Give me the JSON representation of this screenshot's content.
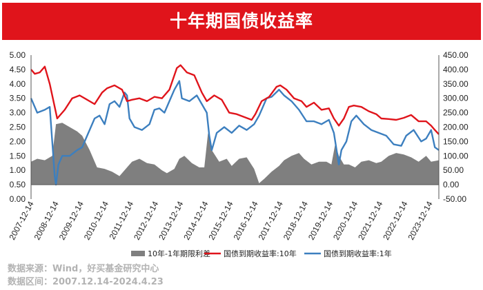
{
  "title": "十年期国债收益率",
  "colors": {
    "header": "#e0141b",
    "spread": "#7f7f7f",
    "y10": "#e0141b",
    "y1": "#3c7fbf"
  },
  "chart_data": {
    "type": "line",
    "x_tick_labels": [
      "2007-12-14",
      "2008-12-14",
      "2009-12-14",
      "2010-12-14",
      "2011-12-14",
      "2012-12-14",
      "2013-12-14",
      "2014-12-14",
      "2015-12-14",
      "2016-12-14",
      "2017-12-14",
      "2018-12-14",
      "2019-12-14",
      "2020-12-14",
      "2021-12-14",
      "2022-12-14",
      "2023-12-14"
    ],
    "x_range": [
      2007.95,
      2024.31
    ],
    "left_axis": {
      "ylim": [
        0,
        5
      ],
      "ticks": [
        "0.00",
        "0.50",
        "1.00",
        "1.50",
        "2.00",
        "2.50",
        "3.00",
        "3.50",
        "4.00",
        "4.50",
        "5.00"
      ]
    },
    "right_axis": {
      "ylim": [
        -50,
        450
      ],
      "ticks": [
        "-50.00",
        "0.00",
        "50.00",
        "100.00",
        "150.00",
        "200.00",
        "250.00",
        "300.00",
        "350.00",
        "400.00",
        "450.00"
      ]
    },
    "series": [
      {
        "name": "10年-1年期限利差",
        "type": "area",
        "axis": "right",
        "x": [
          2007.95,
          2008.2,
          2008.5,
          2008.8,
          2008.95,
          2009.2,
          2009.5,
          2009.8,
          2010.0,
          2010.3,
          2010.6,
          2010.9,
          2011.2,
          2011.5,
          2011.8,
          2012.0,
          2012.3,
          2012.6,
          2012.9,
          2013.2,
          2013.4,
          2013.7,
          2013.9,
          2014.1,
          2014.4,
          2014.7,
          2014.9,
          2015.05,
          2015.2,
          2015.5,
          2015.8,
          2016.0,
          2016.3,
          2016.6,
          2016.9,
          2017.1,
          2017.3,
          2017.6,
          2017.9,
          2018.1,
          2018.4,
          2018.7,
          2018.9,
          2019.2,
          2019.5,
          2019.8,
          2020.0,
          2020.15,
          2020.3,
          2020.5,
          2020.7,
          2020.95,
          2021.2,
          2021.5,
          2021.8,
          2022.0,
          2022.3,
          2022.6,
          2022.9,
          2023.2,
          2023.5,
          2023.8,
          2024.0,
          2024.31
        ],
        "values": [
          80,
          90,
          85,
          100,
          210,
          215,
          200,
          185,
          170,
          120,
          60,
          55,
          45,
          30,
          60,
          80,
          90,
          75,
          70,
          50,
          40,
          55,
          90,
          100,
          75,
          60,
          60,
          180,
          120,
          80,
          90,
          65,
          90,
          95,
          55,
          5,
          20,
          45,
          65,
          85,
          100,
          110,
          90,
          70,
          80,
          80,
          70,
          140,
          100,
          70,
          70,
          60,
          80,
          85,
          75,
          80,
          100,
          110,
          105,
          95,
          80,
          100,
          80,
          85
        ]
      },
      {
        "name": "国债到期收益率:10年",
        "type": "line",
        "axis": "left",
        "x": [
          2007.95,
          2008.1,
          2008.3,
          2008.5,
          2008.7,
          2008.9,
          2009.0,
          2009.3,
          2009.6,
          2009.9,
          2010.2,
          2010.5,
          2010.8,
          2011.0,
          2011.3,
          2011.6,
          2011.8,
          2012.0,
          2012.3,
          2012.6,
          2012.9,
          2013.2,
          2013.5,
          2013.8,
          2013.95,
          2014.2,
          2014.5,
          2014.8,
          2015.0,
          2015.3,
          2015.6,
          2015.9,
          2016.2,
          2016.5,
          2016.8,
          2016.95,
          2017.2,
          2017.5,
          2017.8,
          2017.95,
          2018.2,
          2018.5,
          2018.8,
          2019.0,
          2019.3,
          2019.6,
          2019.9,
          2020.1,
          2020.3,
          2020.5,
          2020.7,
          2020.9,
          2021.2,
          2021.5,
          2021.8,
          2022.0,
          2022.3,
          2022.6,
          2022.9,
          2023.2,
          2023.5,
          2023.8,
          2024.0,
          2024.15,
          2024.31
        ],
        "values": [
          4.5,
          4.35,
          4.4,
          4.6,
          4.0,
          3.2,
          2.8,
          3.1,
          3.5,
          3.6,
          3.45,
          3.3,
          3.7,
          3.85,
          3.95,
          3.8,
          3.4,
          3.45,
          3.5,
          3.4,
          3.55,
          3.5,
          3.8,
          4.55,
          4.65,
          4.4,
          4.3,
          3.7,
          3.4,
          3.6,
          3.45,
          3.0,
          2.95,
          2.85,
          2.75,
          2.95,
          3.4,
          3.55,
          3.9,
          3.95,
          3.8,
          3.5,
          3.4,
          3.2,
          3.35,
          3.1,
          3.15,
          2.8,
          2.55,
          2.8,
          3.2,
          3.25,
          3.2,
          3.05,
          2.95,
          2.8,
          2.78,
          2.75,
          2.82,
          2.92,
          2.7,
          2.7,
          2.55,
          2.4,
          2.25
        ]
      },
      {
        "name": "国债到期收益率:1年",
        "type": "line",
        "axis": "left",
        "x": [
          2007.95,
          2008.2,
          2008.5,
          2008.7,
          2008.8,
          2008.9,
          2008.95,
          2009.05,
          2009.2,
          2009.5,
          2009.8,
          2010.0,
          2010.2,
          2010.5,
          2010.7,
          2010.9,
          2011.1,
          2011.3,
          2011.5,
          2011.7,
          2011.8,
          2011.9,
          2012.1,
          2012.4,
          2012.7,
          2012.9,
          2013.1,
          2013.3,
          2013.5,
          2013.7,
          2013.9,
          2014.0,
          2014.3,
          2014.6,
          2014.8,
          2015.0,
          2015.1,
          2015.2,
          2015.4,
          2015.7,
          2016.0,
          2016.3,
          2016.6,
          2016.9,
          2017.1,
          2017.4,
          2017.6,
          2017.9,
          2018.1,
          2018.4,
          2018.7,
          2019.0,
          2019.3,
          2019.6,
          2019.9,
          2020.1,
          2020.3,
          2020.4,
          2020.6,
          2020.8,
          2021.0,
          2021.3,
          2021.6,
          2021.9,
          2022.2,
          2022.5,
          2022.8,
          2023.0,
          2023.3,
          2023.6,
          2023.8,
          2024.0,
          2024.15,
          2024.31
        ],
        "values": [
          3.5,
          3.0,
          3.1,
          3.2,
          2.0,
          0.8,
          0.5,
          1.2,
          1.5,
          1.5,
          1.7,
          1.8,
          2.2,
          2.8,
          2.9,
          2.6,
          3.3,
          3.4,
          3.2,
          3.7,
          3.6,
          2.8,
          2.5,
          2.4,
          2.6,
          3.1,
          3.15,
          3.0,
          3.4,
          3.8,
          4.1,
          3.5,
          3.4,
          3.6,
          3.3,
          3.0,
          2.2,
          1.7,
          2.3,
          2.5,
          2.3,
          2.55,
          2.4,
          2.6,
          2.9,
          3.5,
          3.55,
          3.8,
          3.6,
          3.4,
          3.1,
          2.7,
          2.7,
          2.6,
          2.75,
          2.3,
          1.2,
          1.7,
          2.0,
          2.7,
          2.9,
          2.6,
          2.4,
          2.3,
          2.2,
          1.9,
          1.85,
          2.2,
          2.4,
          2.0,
          2.1,
          2.4,
          1.8,
          1.7
        ]
      }
    ],
    "legend_position": "bottom"
  },
  "source_lines": [
    "数据来源：Wind，好买基金研究中心",
    "数据区间：2007.12.14-2024.4.23"
  ]
}
